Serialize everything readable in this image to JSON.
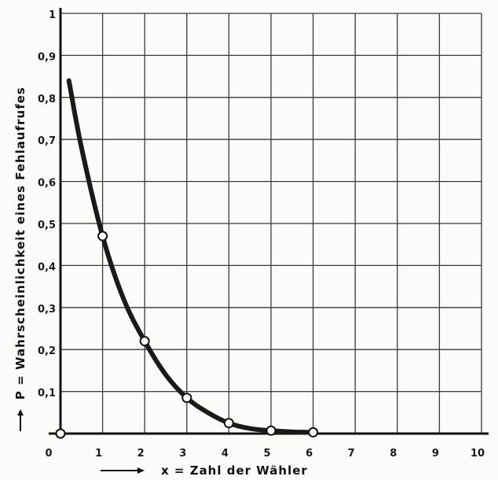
{
  "chart_data": {
    "type": "line",
    "xlabel": "x = Zahl der Wähler",
    "ylabel": "P = Wahrscheinlichkeit eines Fehlaufrufes",
    "xlim": [
      0,
      10
    ],
    "ylim": [
      0,
      1
    ],
    "grid": true,
    "x_ticks": [
      "0",
      "1",
      "2",
      "3",
      "4",
      "5",
      "6",
      "7",
      "8",
      "9",
      "10"
    ],
    "y_ticks": [
      "0,1",
      "0,2",
      "0,3",
      "0,4",
      "0,5",
      "0,6",
      "0,7",
      "0,8",
      "0,9",
      "1"
    ],
    "curve": {
      "x": [
        0.2,
        0.5,
        1,
        1.5,
        2,
        2.5,
        3,
        3.5,
        4,
        4.5,
        5,
        5.5,
        6
      ],
      "y": [
        0.84,
        0.68,
        0.47,
        0.32,
        0.22,
        0.14,
        0.085,
        0.05,
        0.025,
        0.012,
        0.007,
        0.004,
        0.003
      ]
    },
    "points": {
      "x": [
        0,
        1,
        2,
        3,
        4,
        5,
        6
      ],
      "y": [
        0.0,
        0.47,
        0.22,
        0.085,
        0.025,
        0.007,
        0.003
      ]
    }
  }
}
